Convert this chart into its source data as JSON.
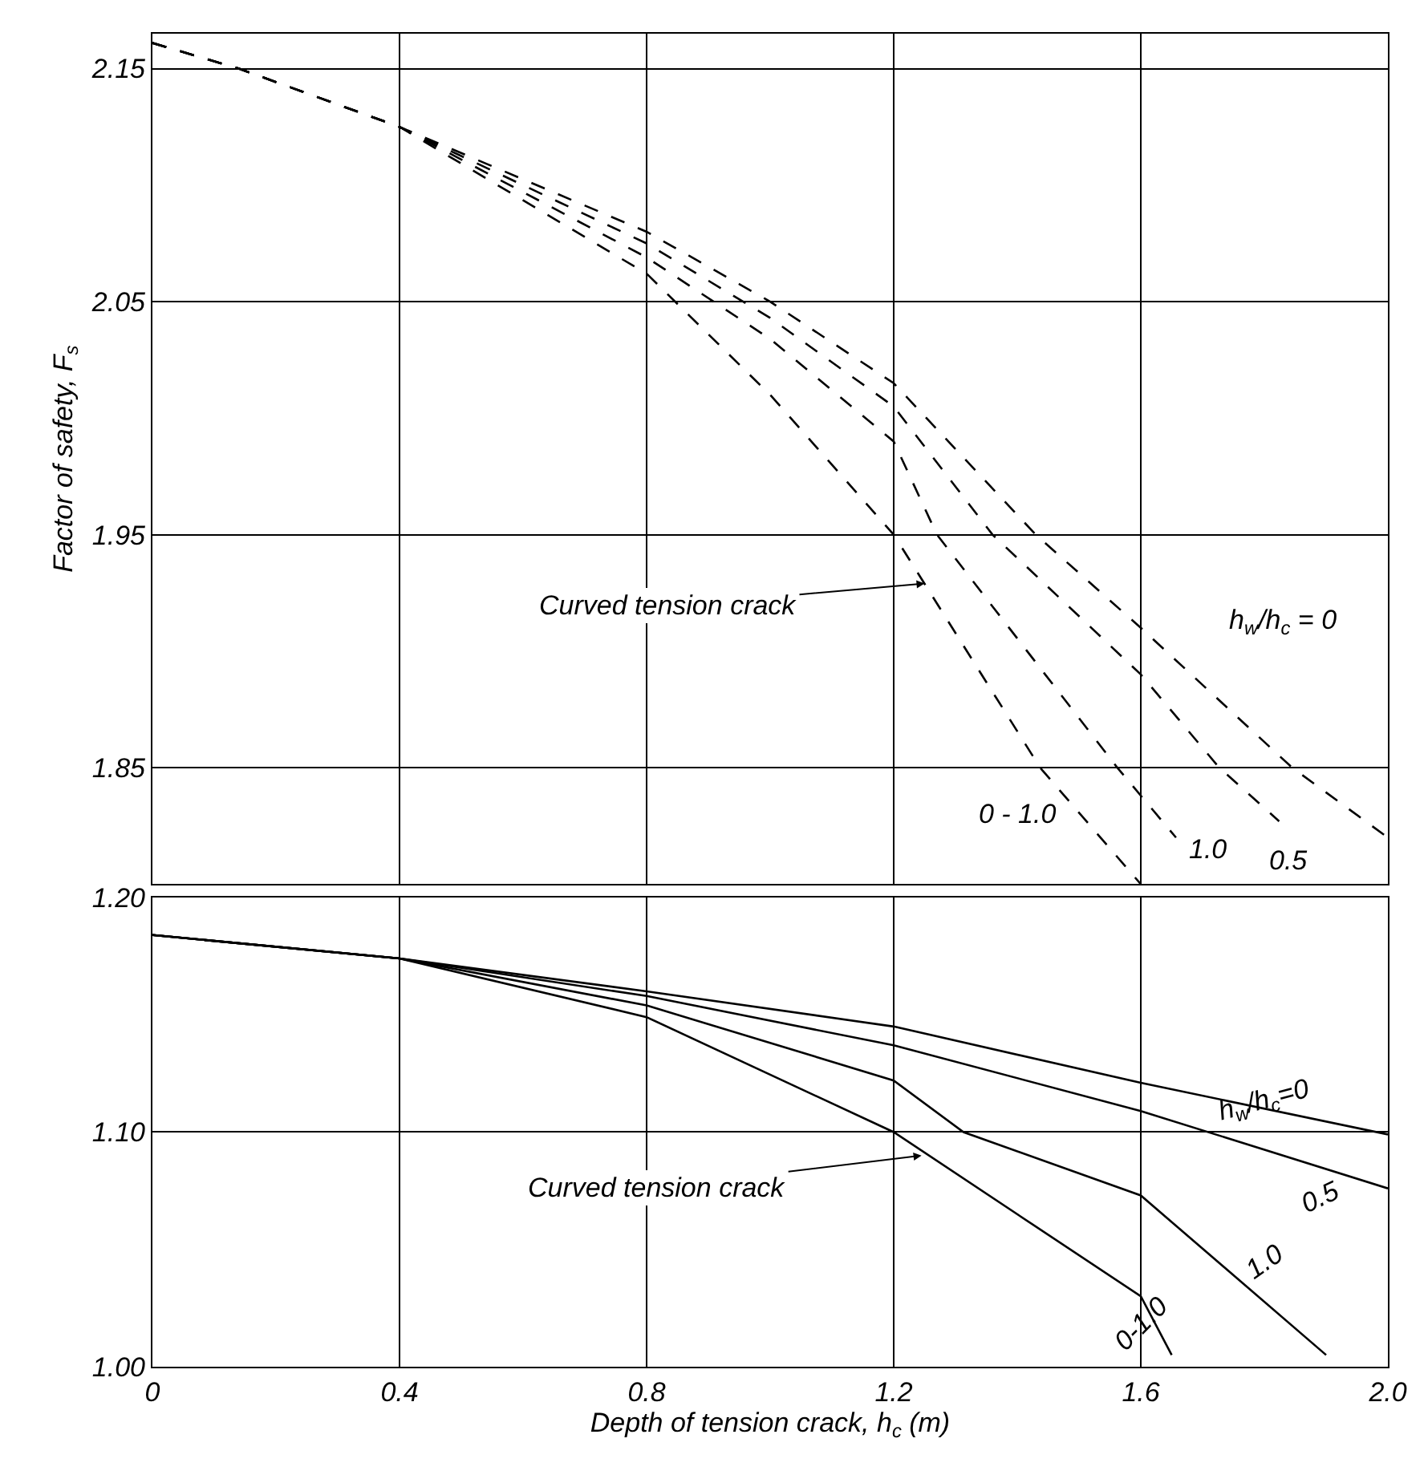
{
  "chart_data": [
    {
      "type": "line",
      "ylabel": "Factor of safety, F$_{s}$",
      "xlim": [
        0,
        2.0
      ],
      "xticks": [
        0,
        0.4,
        0.8,
        1.2,
        1.6,
        2.0
      ],
      "ylim": [
        1.8,
        2.165
      ],
      "yticks": [
        1.85,
        1.95,
        2.05,
        2.15
      ],
      "grid": true,
      "tick_labels": "y",
      "line_style": "dashed",
      "series": [
        {
          "name": "h$_{w}$/h$_{c}$ = 0",
          "color": "#000000",
          "x": [
            0,
            0.14,
            0.4,
            0.8,
            1.0,
            1.2,
            1.43,
            1.6,
            1.845,
            2.0
          ],
          "values": [
            2.161,
            2.15,
            2.125,
            2.08,
            2.05,
            2.015,
            1.95,
            1.91,
            1.85,
            1.82
          ]
        },
        {
          "name": "0.5",
          "color": "#000000",
          "x": [
            0,
            0.14,
            0.4,
            0.8,
            1.0,
            1.2,
            1.36,
            1.6,
            1.727,
            1.824
          ],
          "values": [
            2.161,
            2.15,
            2.125,
            2.075,
            2.043,
            2.005,
            1.95,
            1.89,
            1.85,
            1.827
          ]
        },
        {
          "name": "1.0",
          "color": "#000000",
          "x": [
            0,
            0.14,
            0.4,
            0.8,
            1.0,
            1.2,
            1.27,
            1.562,
            1.657
          ],
          "values": [
            2.161,
            2.15,
            2.125,
            2.069,
            2.034,
            1.99,
            1.95,
            1.85,
            1.82
          ]
        },
        {
          "name": "0 - 1.0",
          "color": "#000000",
          "x": [
            0,
            0.14,
            0.4,
            0.8,
            1.0,
            1.2,
            1.437,
            1.6
          ],
          "values": [
            2.161,
            2.15,
            2.125,
            2.062,
            2.01,
            1.95,
            1.85,
            1.8
          ]
        }
      ],
      "annotations": [
        {
          "text": "Curved tension crack",
          "x": 1.25,
          "y": 1.929
        }
      ]
    },
    {
      "type": "line",
      "xlabel": "Depth of tension crack, h$_{c}$ (m)",
      "xlim": [
        0,
        2.0
      ],
      "xticks": [
        0,
        0.4,
        0.8,
        1.2,
        1.6,
        {
          "value": 2.0,
          "label": "2.0"
        }
      ],
      "ylim": [
        1.0,
        1.2
      ],
      "yticks": [
        {
          "value": 1.0,
          "label": "1.00"
        },
        {
          "value": 1.1,
          "label": "1.10"
        },
        {
          "value": 1.2,
          "label": "1.20"
        }
      ],
      "grid": true,
      "line_style": "solid",
      "series": [
        {
          "name": "h$_{w}$/h$_{c}$=0",
          "color": "#000000",
          "x": [
            0,
            0.4,
            0.8,
            1.2,
            1.6,
            2.0
          ],
          "values": [
            1.184,
            1.174,
            1.16,
            1.145,
            1.121,
            1.099
          ]
        },
        {
          "name": "0.5",
          "color": "#000000",
          "x": [
            0,
            0.4,
            0.8,
            1.2,
            1.6,
            2.0
          ],
          "values": [
            1.184,
            1.174,
            1.158,
            1.137,
            1.109,
            1.076
          ]
        },
        {
          "name": "1.0",
          "color": "#000000",
          "x": [
            0,
            0.4,
            0.8,
            1.2,
            1.313,
            1.6,
            1.9
          ],
          "values": [
            1.184,
            1.174,
            1.154,
            1.122,
            1.1,
            1.073,
            1.005
          ]
        },
        {
          "name": "0-1.0",
          "color": "#000000",
          "x": [
            0,
            0.4,
            0.8,
            1.2,
            1.6,
            1.65
          ],
          "values": [
            1.184,
            1.174,
            1.149,
            1.1,
            1.03,
            1.005
          ]
        }
      ],
      "annotations": [
        {
          "text": "Curved tension crack",
          "x": 1.245,
          "y": 1.09
        }
      ]
    }
  ]
}
